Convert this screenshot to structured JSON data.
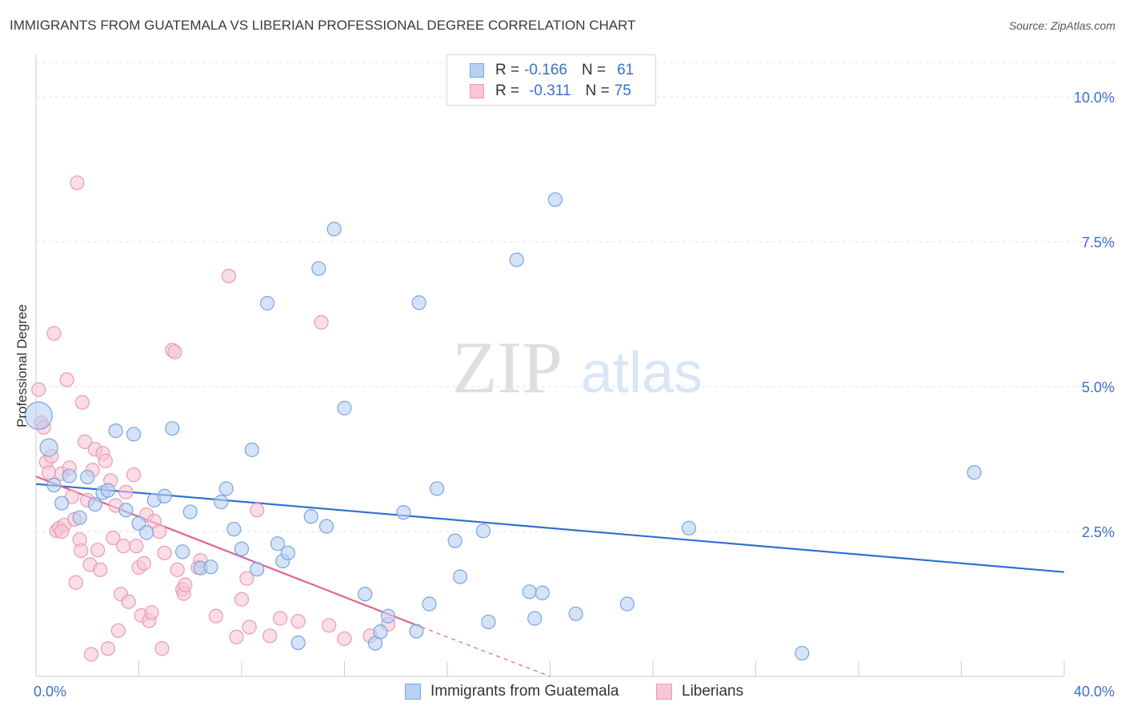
{
  "header": {
    "title": "IMMIGRANTS FROM GUATEMALA VS LIBERIAN PROFESSIONAL DEGREE CORRELATION CHART",
    "source": "Source: ZipAtlas.com"
  },
  "watermark": {
    "zip": "ZIP",
    "atlas": "atlas"
  },
  "colors": {
    "blue_fill": "#b9d1f2",
    "blue_stroke": "#7aa4e0",
    "blue_line": "#2f6fcf",
    "pink_fill": "#f8c6d5",
    "pink_stroke": "#e99ab4",
    "pink_line": "#e0638f",
    "axis_text": "#3a6fd0"
  },
  "legend": {
    "rows": [
      {
        "r_label": "R =",
        "r_value": "-0.166",
        "n_label": "N =",
        "n_value": "61"
      },
      {
        "r_label": "R =",
        "r_value": "-0.311",
        "n_label": "N =",
        "n_value": "75"
      }
    ]
  },
  "bottom_legend": [
    "Immigrants from Guatemala",
    "Liberians"
  ],
  "chart_data": {
    "type": "scatter",
    "xlabel": "",
    "ylabel": "Professional Degree",
    "xlim": [
      0,
      40
    ],
    "ylim": [
      0,
      10.5
    ],
    "x_tick_labels": [
      "0.0%",
      "40.0%"
    ],
    "y_ticks": [
      2.5,
      5.0,
      7.5,
      10.0
    ],
    "y_tick_labels": [
      "2.5%",
      "5.0%",
      "7.5%",
      "10.0%"
    ],
    "grid": true,
    "legend_position": "top-center",
    "series": [
      {
        "name": "Immigrants from Guatemala",
        "color": "#b9d1f2",
        "points": [
          [
            0.1,
            4.5
          ],
          [
            0.5,
            3.95
          ],
          [
            0.7,
            3.3
          ],
          [
            1.0,
            2.99
          ],
          [
            1.3,
            3.46
          ],
          [
            1.7,
            2.74
          ],
          [
            2.0,
            3.44
          ],
          [
            2.3,
            2.97
          ],
          [
            2.6,
            3.17
          ],
          [
            3.1,
            4.24
          ],
          [
            3.5,
            2.87
          ],
          [
            3.8,
            4.18
          ],
          [
            4.0,
            2.64
          ],
          [
            4.3,
            2.48
          ],
          [
            4.6,
            3.04
          ],
          [
            5.0,
            3.11
          ],
          [
            5.3,
            4.28
          ],
          [
            5.7,
            2.15
          ],
          [
            6.0,
            2.84
          ],
          [
            6.4,
            1.87
          ],
          [
            6.8,
            1.89
          ],
          [
            7.2,
            3.01
          ],
          [
            7.4,
            3.24
          ],
          [
            7.7,
            2.54
          ],
          [
            8.0,
            2.2
          ],
          [
            8.4,
            3.91
          ],
          [
            8.6,
            1.85
          ],
          [
            9.0,
            6.44
          ],
          [
            9.4,
            2.29
          ],
          [
            9.6,
            1.99
          ],
          [
            9.8,
            2.13
          ],
          [
            10.2,
            0.58
          ],
          [
            10.7,
            2.76
          ],
          [
            11.0,
            7.04
          ],
          [
            11.3,
            2.59
          ],
          [
            11.6,
            7.72
          ],
          [
            12.0,
            4.63
          ],
          [
            12.8,
            1.42
          ],
          [
            13.2,
            0.57
          ],
          [
            13.4,
            0.77
          ],
          [
            13.7,
            1.04
          ],
          [
            14.3,
            2.83
          ],
          [
            14.8,
            0.78
          ],
          [
            14.9,
            6.45
          ],
          [
            15.3,
            1.25
          ],
          [
            15.6,
            3.24
          ],
          [
            16.3,
            2.34
          ],
          [
            16.5,
            1.72
          ],
          [
            17.4,
            2.51
          ],
          [
            17.6,
            0.94
          ],
          [
            18.7,
            7.19
          ],
          [
            19.2,
            1.46
          ],
          [
            19.4,
            1.0
          ],
          [
            19.7,
            1.44
          ],
          [
            20.2,
            8.23
          ],
          [
            21.0,
            1.08
          ],
          [
            23.0,
            1.25
          ],
          [
            25.4,
            2.56
          ],
          [
            29.8,
            0.4
          ],
          [
            36.5,
            3.52
          ],
          [
            2.8,
            3.21
          ]
        ],
        "trend": {
          "x": [
            0,
            40
          ],
          "y": [
            3.32,
            1.8
          ]
        }
      },
      {
        "name": "Liberians",
        "color": "#f8c6d5",
        "points": [
          [
            0.1,
            4.95
          ],
          [
            0.2,
            4.38
          ],
          [
            0.3,
            4.3
          ],
          [
            0.4,
            3.7
          ],
          [
            0.5,
            3.52
          ],
          [
            0.6,
            3.8
          ],
          [
            0.7,
            5.92
          ],
          [
            0.8,
            2.51
          ],
          [
            0.9,
            2.56
          ],
          [
            1.0,
            3.5
          ],
          [
            1.1,
            2.61
          ],
          [
            1.2,
            5.12
          ],
          [
            1.3,
            3.6
          ],
          [
            1.4,
            3.1
          ],
          [
            1.5,
            2.71
          ],
          [
            1.55,
            1.62
          ],
          [
            1.6,
            8.52
          ],
          [
            1.7,
            2.36
          ],
          [
            1.75,
            2.17
          ],
          [
            1.8,
            4.73
          ],
          [
            1.9,
            4.05
          ],
          [
            2.0,
            3.04
          ],
          [
            2.1,
            1.93
          ],
          [
            2.2,
            3.56
          ],
          [
            2.3,
            3.92
          ],
          [
            2.4,
            2.18
          ],
          [
            2.5,
            1.84
          ],
          [
            2.6,
            3.85
          ],
          [
            2.7,
            3.72
          ],
          [
            2.8,
            0.48
          ],
          [
            2.9,
            3.38
          ],
          [
            3.0,
            2.39
          ],
          [
            3.1,
            2.95
          ],
          [
            3.2,
            0.79
          ],
          [
            3.3,
            1.42
          ],
          [
            3.4,
            2.25
          ],
          [
            3.5,
            3.18
          ],
          [
            3.6,
            1.29
          ],
          [
            3.8,
            3.48
          ],
          [
            3.9,
            2.25
          ],
          [
            4.0,
            1.88
          ],
          [
            4.1,
            1.05
          ],
          [
            4.2,
            1.95
          ],
          [
            4.3,
            2.79
          ],
          [
            4.4,
            0.96
          ],
          [
            4.5,
            1.1
          ],
          [
            4.6,
            2.68
          ],
          [
            4.8,
            2.5
          ],
          [
            4.9,
            0.48
          ],
          [
            5.0,
            2.13
          ],
          [
            5.3,
            5.63
          ],
          [
            5.4,
            5.6
          ],
          [
            5.5,
            1.84
          ],
          [
            5.7,
            1.5
          ],
          [
            5.75,
            1.43
          ],
          [
            5.8,
            1.58
          ],
          [
            6.3,
            1.88
          ],
          [
            6.4,
            2.0
          ],
          [
            7.0,
            1.04
          ],
          [
            7.5,
            6.91
          ],
          [
            7.8,
            0.68
          ],
          [
            8.0,
            1.33
          ],
          [
            8.2,
            1.69
          ],
          [
            8.3,
            0.85
          ],
          [
            8.6,
            2.87
          ],
          [
            9.1,
            0.7
          ],
          [
            9.5,
            1.0
          ],
          [
            10.2,
            0.95
          ],
          [
            11.1,
            6.11
          ],
          [
            11.4,
            0.88
          ],
          [
            12.0,
            0.65
          ],
          [
            13.0,
            0.7
          ],
          [
            13.7,
            0.9
          ],
          [
            2.15,
            0.38
          ],
          [
            1.0,
            2.5
          ]
        ],
        "trend": {
          "x": [
            0,
            15
          ],
          "y": [
            3.45,
            0.85
          ]
        },
        "trend_extension": {
          "x": [
            15,
            20
          ],
          "y": [
            0.85,
            0.0
          ]
        }
      }
    ]
  }
}
